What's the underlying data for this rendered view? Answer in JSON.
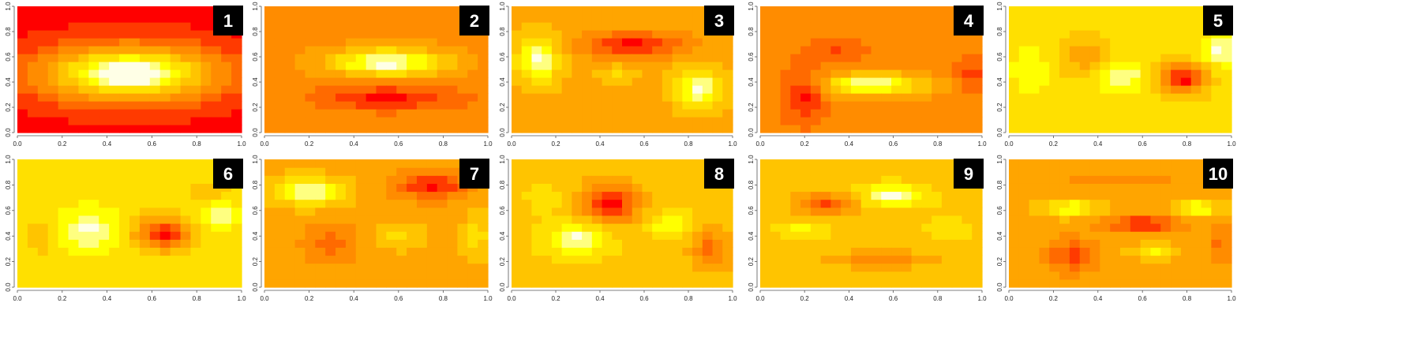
{
  "chart_data": {
    "type": "heatmap",
    "layout": "2 rows x 5 panels",
    "palette": [
      "#FF0000",
      "#FF3A00",
      "#FF6A00",
      "#FF8C00",
      "#FFA500",
      "#FFC400",
      "#FFE000",
      "#FFFF00",
      "#FFFF80",
      "#FFFFE6"
    ],
    "xlim": [
      0,
      1
    ],
    "ylim": [
      0,
      1
    ],
    "xticks": [
      "0.0",
      "0.2",
      "0.4",
      "0.6",
      "0.8",
      "1.0"
    ],
    "yticks": [
      "0.0",
      "0.2",
      "0.4",
      "0.6",
      "0.8",
      "1.0"
    ],
    "grid": false,
    "panels": [
      {
        "label": "1",
        "base": 0,
        "blobs": [
          [
            0.5,
            0.47,
            0.36,
            0.2,
            10.5,
            0.8
          ]
        ]
      },
      {
        "label": "2",
        "base": 3,
        "blobs": [
          [
            0.55,
            0.56,
            0.24,
            0.1,
            6.5,
            0.8
          ],
          [
            0.55,
            0.28,
            0.28,
            0.09,
            -3,
            0.9
          ]
        ]
      },
      {
        "label": "3",
        "base": 4,
        "blobs": [
          [
            0.12,
            0.58,
            0.09,
            0.17,
            5,
            0.8
          ],
          [
            0.85,
            0.35,
            0.1,
            0.15,
            5,
            0.8
          ],
          [
            0.55,
            0.7,
            0.22,
            0.09,
            -4,
            0.9
          ],
          [
            0.48,
            0.45,
            0.08,
            0.08,
            2,
            0.9
          ]
        ]
      },
      {
        "label": "4",
        "base": 3,
        "blobs": [
          [
            0.5,
            0.38,
            0.22,
            0.08,
            6,
            0.8
          ],
          [
            0.2,
            0.3,
            0.1,
            0.2,
            -3,
            0.9
          ],
          [
            0.95,
            0.45,
            0.07,
            0.15,
            -2,
            0.9
          ],
          [
            0.35,
            0.65,
            0.15,
            0.08,
            -1.5,
            0.9
          ]
        ]
      },
      {
        "label": "5",
        "base": 6,
        "blobs": [
          [
            0.5,
            0.45,
            0.1,
            0.12,
            3,
            0.8
          ],
          [
            0.95,
            0.65,
            0.08,
            0.1,
            3,
            0.8
          ],
          [
            0.78,
            0.43,
            0.1,
            0.12,
            -6,
            0.9
          ],
          [
            0.35,
            0.6,
            0.12,
            0.15,
            -2.5,
            0.9
          ],
          [
            0.1,
            0.5,
            0.08,
            0.2,
            1.5,
            0.9
          ]
        ]
      },
      {
        "label": "6",
        "base": 6,
        "blobs": [
          [
            0.32,
            0.45,
            0.12,
            0.15,
            3,
            0.8
          ],
          [
            0.9,
            0.55,
            0.07,
            0.1,
            2.5,
            0.8
          ],
          [
            0.65,
            0.42,
            0.12,
            0.12,
            -6,
            0.9
          ],
          [
            0.1,
            0.4,
            0.05,
            0.15,
            -1.5,
            0.9
          ],
          [
            0.85,
            0.75,
            0.1,
            0.06,
            -1.5,
            0.9
          ]
        ]
      },
      {
        "label": "7",
        "base": 4,
        "blobs": [
          [
            0.2,
            0.75,
            0.14,
            0.1,
            5,
            0.8
          ],
          [
            0.75,
            0.8,
            0.15,
            0.1,
            -4,
            0.9
          ],
          [
            0.3,
            0.35,
            0.12,
            0.15,
            -2,
            0.9
          ],
          [
            0.6,
            0.4,
            0.12,
            0.1,
            2,
            0.8
          ],
          [
            0.95,
            0.4,
            0.06,
            0.2,
            2,
            0.8
          ]
        ]
      },
      {
        "label": "8",
        "base": 5,
        "blobs": [
          [
            0.3,
            0.38,
            0.14,
            0.12,
            4,
            0.8
          ],
          [
            0.72,
            0.5,
            0.1,
            0.08,
            3,
            0.8
          ],
          [
            0.45,
            0.65,
            0.12,
            0.15,
            -5,
            0.9
          ],
          [
            0.9,
            0.3,
            0.08,
            0.15,
            -3,
            0.9
          ],
          [
            0.15,
            0.7,
            0.08,
            0.1,
            1.5,
            0.8
          ]
        ]
      },
      {
        "label": "9",
        "base": 5,
        "blobs": [
          [
            0.6,
            0.72,
            0.14,
            0.08,
            4,
            0.8
          ],
          [
            0.3,
            0.65,
            0.12,
            0.08,
            -4,
            0.9
          ],
          [
            0.55,
            0.22,
            0.2,
            0.06,
            -2.5,
            0.9
          ],
          [
            0.2,
            0.45,
            0.12,
            0.08,
            2,
            0.8
          ],
          [
            0.85,
            0.45,
            0.1,
            0.1,
            1.5,
            0.8
          ]
        ]
      },
      {
        "label": "10",
        "base": 4,
        "blobs": [
          [
            0.28,
            0.62,
            0.12,
            0.06,
            4,
            0.8
          ],
          [
            0.85,
            0.62,
            0.1,
            0.06,
            4,
            0.8
          ],
          [
            0.6,
            0.5,
            0.15,
            0.06,
            -4,
            0.9
          ],
          [
            0.28,
            0.25,
            0.1,
            0.12,
            -3,
            0.9
          ],
          [
            0.65,
            0.28,
            0.1,
            0.05,
            3,
            0.8
          ],
          [
            0.5,
            0.85,
            0.2,
            0.04,
            -1.5,
            0.9
          ],
          [
            0.95,
            0.35,
            0.05,
            0.15,
            -2,
            0.9
          ]
        ]
      }
    ]
  }
}
